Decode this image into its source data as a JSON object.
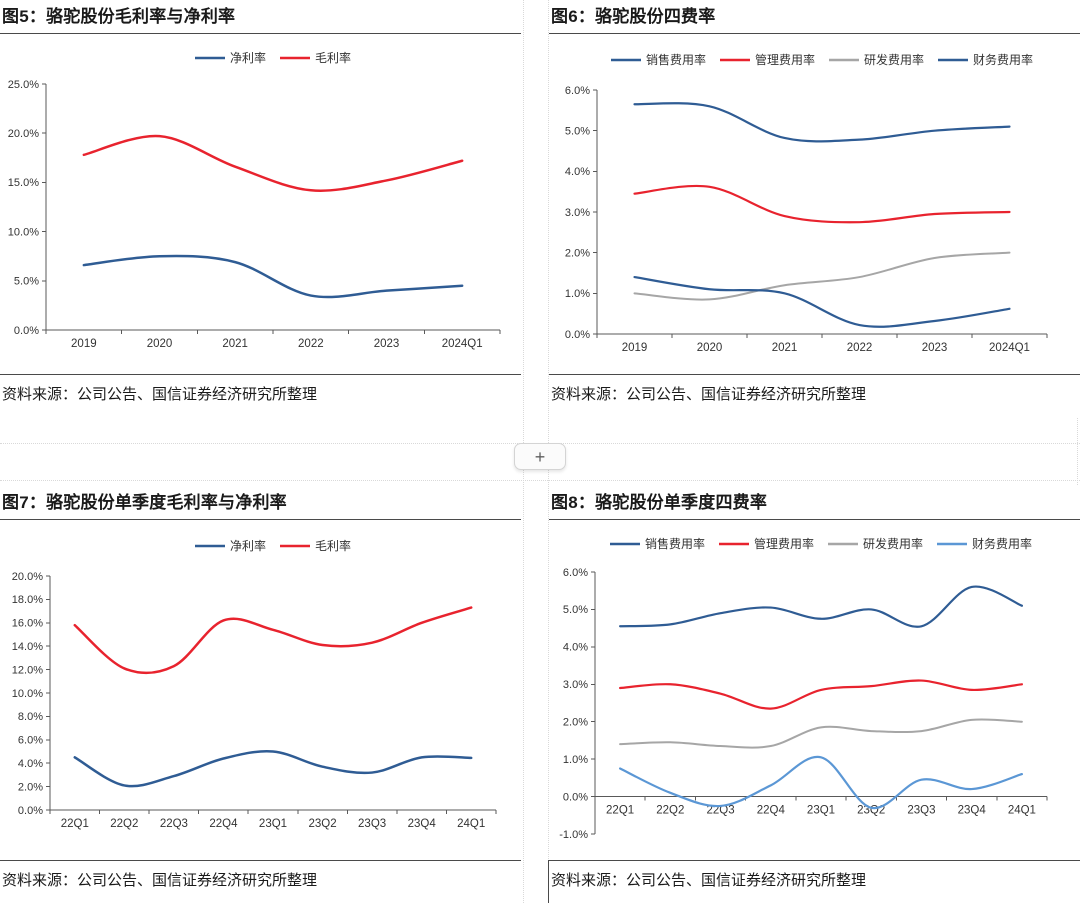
{
  "page": {
    "background": "#ffffff",
    "grid_line_color": "#d9d9d9",
    "rule_color": "#4a4a4a",
    "axis_color": "#595959",
    "tick_label_color": "#333333"
  },
  "divider": {
    "plus_label": "+"
  },
  "chart_data": [
    {
      "id": "fig5",
      "type": "line",
      "title": "图5：骆驼股份毛利率与净利率",
      "source": "资料来源：公司公告、国信证券经济研究所整理",
      "categories": [
        "2019",
        "2020",
        "2021",
        "2022",
        "2023",
        "2024Q1"
      ],
      "series": [
        {
          "name": "净利率",
          "color": "#2f5c94",
          "values": [
            6.6,
            7.5,
            6.9,
            3.5,
            4.0,
            4.5
          ]
        },
        {
          "name": "毛利率",
          "color": "#e8232e",
          "values": [
            17.8,
            19.7,
            16.6,
            14.2,
            15.2,
            17.2
          ]
        }
      ],
      "ylim": [
        0,
        25
      ],
      "ytick_step": 5,
      "ytick_format": "percent-1dp",
      "legend_position": "top",
      "grid": false
    },
    {
      "id": "fig6",
      "type": "line",
      "title": "图6：骆驼股份四费率",
      "source": "资料来源：公司公告、国信证券经济研究所整理",
      "categories": [
        "2019",
        "2020",
        "2021",
        "2022",
        "2023",
        "2024Q1"
      ],
      "series": [
        {
          "name": "销售费用率",
          "color": "#2f5c94",
          "values": [
            5.65,
            5.6,
            4.82,
            4.78,
            5.0,
            5.1
          ]
        },
        {
          "name": "管理费用率",
          "color": "#e8232e",
          "values": [
            3.45,
            3.62,
            2.9,
            2.75,
            2.95,
            3.0
          ]
        },
        {
          "name": "研发费用率",
          "color": "#a6a6a6",
          "values": [
            1.0,
            0.85,
            1.2,
            1.4,
            1.87,
            2.0
          ]
        },
        {
          "name": "财务费用率",
          "color": "#2f5c94",
          "values": [
            1.4,
            1.1,
            1.0,
            0.22,
            0.32,
            0.62
          ]
        }
      ],
      "ylim": [
        0,
        6
      ],
      "ytick_step": 1,
      "ytick_format": "percent-1dp",
      "legend_position": "top",
      "grid": false
    },
    {
      "id": "fig7",
      "type": "line",
      "title": "图7：骆驼股份单季度毛利率与净利率",
      "source": "资料来源：公司公告、国信证券经济研究所整理",
      "categories": [
        "22Q1",
        "22Q2",
        "22Q3",
        "22Q4",
        "23Q1",
        "23Q2",
        "23Q3",
        "23Q4",
        "24Q1"
      ],
      "series": [
        {
          "name": "净利率",
          "color": "#2f5c94",
          "values": [
            4.5,
            2.1,
            2.9,
            4.4,
            5.0,
            3.7,
            3.2,
            4.5,
            4.45
          ]
        },
        {
          "name": "毛利率",
          "color": "#e8232e",
          "values": [
            15.8,
            12.1,
            12.3,
            16.2,
            15.4,
            14.1,
            14.3,
            16.0,
            17.3
          ]
        }
      ],
      "ylim": [
        0,
        20
      ],
      "ytick_step": 2,
      "ytick_format": "percent-1dp",
      "legend_position": "top",
      "grid": false
    },
    {
      "id": "fig8",
      "type": "line",
      "title": "图8：骆驼股份单季度四费率",
      "source": "资料来源：公司公告、国信证券经济研究所整理",
      "categories": [
        "22Q1",
        "22Q2",
        "22Q3",
        "22Q4",
        "23Q1",
        "23Q2",
        "23Q3",
        "23Q4",
        "24Q1"
      ],
      "series": [
        {
          "name": "销售费用率",
          "color": "#2f5c94",
          "values": [
            4.55,
            4.6,
            4.9,
            5.05,
            4.75,
            5.0,
            4.55,
            5.6,
            5.1
          ]
        },
        {
          "name": "管理费用率",
          "color": "#e8232e",
          "values": [
            2.9,
            3.0,
            2.75,
            2.35,
            2.85,
            2.95,
            3.1,
            2.85,
            3.0
          ]
        },
        {
          "name": "研发费用率",
          "color": "#a6a6a6",
          "values": [
            1.4,
            1.45,
            1.35,
            1.35,
            1.85,
            1.75,
            1.75,
            2.05,
            2.0
          ]
        },
        {
          "name": "财务费用率",
          "color": "#5b97d5",
          "values": [
            0.75,
            0.1,
            -0.25,
            0.3,
            1.05,
            -0.3,
            0.45,
            0.2,
            0.6
          ]
        }
      ],
      "ylim": [
        -1,
        6
      ],
      "ytick_step": 1,
      "ytick_format": "percent-1dp",
      "legend_position": "top",
      "grid": false
    }
  ]
}
